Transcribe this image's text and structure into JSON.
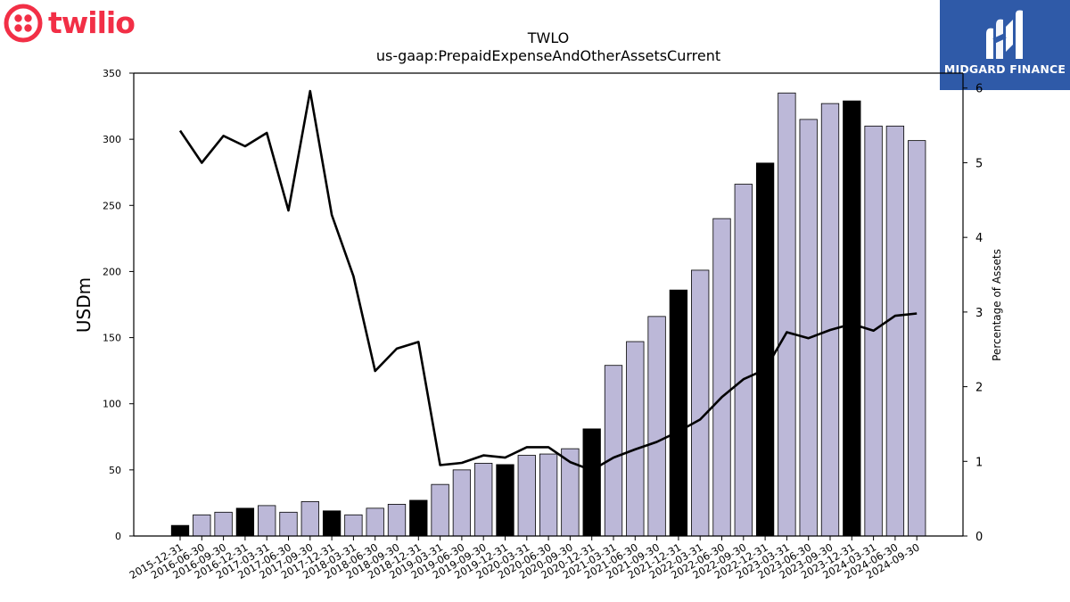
{
  "logos": {
    "left_brand": "twilio",
    "right_brand": "MIDGARD FINANCE",
    "left_color": "#f22f46",
    "right_bg": "#2f5aa8"
  },
  "chart_data": {
    "type": "bar",
    "title": "TWLO",
    "subtitle": "us-gaap:PrepaidExpenseAndOtherAssetsCurrent",
    "ylabel": "USDm",
    "y2label": "Percentage of Assets",
    "ylim": [
      0,
      350
    ],
    "y2lim": [
      0,
      6.2
    ],
    "yticks": [
      0,
      50,
      100,
      150,
      200,
      250,
      300,
      350
    ],
    "y2ticks": [
      0,
      1,
      2,
      3,
      4,
      5,
      6
    ],
    "categories": [
      "2015-12-31",
      "2016-06-30",
      "2016-09-30",
      "2016-12-31",
      "2017-03-31",
      "2017-06-30",
      "2017-09-30",
      "2017-12-31",
      "2018-03-31",
      "2018-06-30",
      "2018-09-30",
      "2018-12-31",
      "2019-03-31",
      "2019-06-30",
      "2019-09-30",
      "2019-12-31",
      "2020-03-31",
      "2020-06-30",
      "2020-09-30",
      "2020-12-31",
      "2021-03-31",
      "2021-06-30",
      "2021-09-30",
      "2021-12-31",
      "2022-03-31",
      "2022-06-30",
      "2022-09-30",
      "2022-12-31",
      "2023-03-31",
      "2023-06-30",
      "2023-09-30",
      "2023-12-31",
      "2024-03-31",
      "2024-06-30",
      "2024-09-30"
    ],
    "series": [
      {
        "kind": "bar",
        "axis": "left",
        "values": [
          8,
          16,
          18,
          21,
          23,
          18,
          26,
          19,
          16,
          21,
          24,
          27,
          39,
          50,
          55,
          54,
          61,
          62,
          66,
          81,
          129,
          147,
          166,
          186,
          201,
          240,
          266,
          282,
          335,
          315,
          327,
          329,
          310,
          310,
          299
        ],
        "colors": [
          "#000000",
          "#bcb8d8",
          "#bcb8d8",
          "#000000",
          "#bcb8d8",
          "#bcb8d8",
          "#bcb8d8",
          "#000000",
          "#bcb8d8",
          "#bcb8d8",
          "#bcb8d8",
          "#000000",
          "#bcb8d8",
          "#bcb8d8",
          "#bcb8d8",
          "#000000",
          "#bcb8d8",
          "#bcb8d8",
          "#bcb8d8",
          "#000000",
          "#bcb8d8",
          "#bcb8d8",
          "#bcb8d8",
          "#000000",
          "#bcb8d8",
          "#bcb8d8",
          "#bcb8d8",
          "#000000",
          "#bcb8d8",
          "#bcb8d8",
          "#bcb8d8",
          "#000000",
          "#bcb8d8",
          "#bcb8d8",
          "#bcb8d8"
        ]
      },
      {
        "kind": "line",
        "axis": "right",
        "values": [
          5.43,
          5.0,
          5.36,
          5.22,
          5.4,
          4.36,
          5.96,
          4.3,
          3.48,
          2.21,
          2.51,
          2.6,
          0.95,
          0.98,
          1.08,
          1.05,
          1.19,
          1.19,
          0.99,
          0.88,
          1.05,
          1.16,
          1.26,
          1.4,
          1.56,
          1.86,
          2.1,
          2.23,
          2.73,
          2.65,
          2.76,
          2.84,
          2.75,
          2.95,
          2.98
        ]
      }
    ],
    "grid": false
  }
}
